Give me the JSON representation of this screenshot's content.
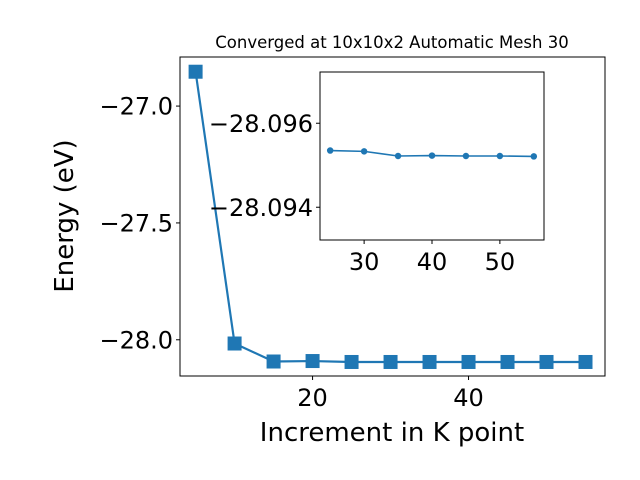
{
  "chart_data": [
    {
      "type": "line",
      "title": "Converged at 10x10x2 Automatic Mesh 30",
      "xlabel": "Increment in K point",
      "ylabel": "Energy (eV)",
      "xlim": [
        3,
        57.5
      ],
      "ylim": [
        -28.155,
        -26.79
      ],
      "xticks": [
        20,
        40
      ],
      "xtick_labels": [
        "20",
        "40"
      ],
      "yticks": [
        -27.0,
        -27.5,
        -28.0
      ],
      "ytick_labels": [
        "−27.0",
        "−27.5",
        "−28.0"
      ],
      "grid": false,
      "series": [
        {
          "marker": "square",
          "color": "#1f77b4",
          "x": [
            5,
            10,
            15,
            20,
            25,
            30,
            35,
            40,
            45,
            50,
            55
          ],
          "y": [
            -26.853,
            -28.016,
            -28.093,
            -28.091,
            -28.095,
            -28.095,
            -28.095,
            -28.095,
            -28.095,
            -28.095,
            -28.095
          ]
        }
      ]
    },
    {
      "type": "line",
      "title": "",
      "xlabel": "",
      "ylabel": "",
      "xlim": [
        23.5,
        56.5
      ],
      "ylim": [
        -28.09322,
        -28.09722
      ],
      "xticks": [
        30,
        40,
        50
      ],
      "xtick_labels": [
        "30",
        "40",
        "50"
      ],
      "yticks": [
        -28.096,
        -28.094
      ],
      "ytick_labels": [
        "−28.096",
        "−28.094"
      ],
      "grid": false,
      "series": [
        {
          "marker": "circle",
          "color": "#1f77b4",
          "x": [
            25,
            30,
            35,
            40,
            45,
            50,
            55
          ],
          "y": [
            -28.09535,
            -28.09533,
            -28.09522,
            -28.09523,
            -28.09522,
            -28.09522,
            -28.09521
          ]
        }
      ]
    }
  ]
}
